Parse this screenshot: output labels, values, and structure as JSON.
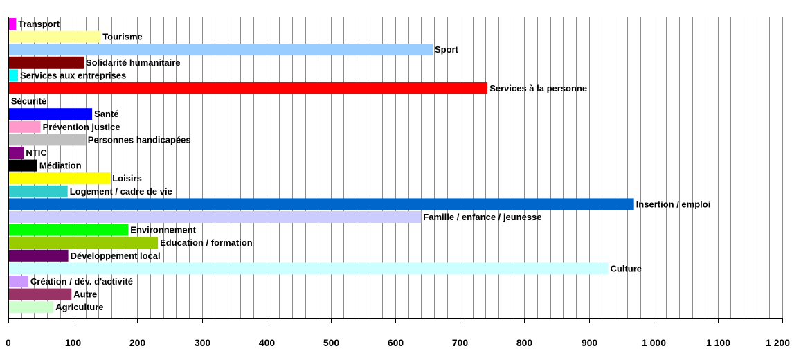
{
  "chart_data": {
    "type": "bar",
    "orientation": "horizontal",
    "title": "",
    "xlabel": "",
    "ylabel": "",
    "xlim": [
      0,
      1200
    ],
    "grid": "vertical",
    "major_ticks": [
      0,
      100,
      200,
      300,
      400,
      500,
      600,
      700,
      800,
      900,
      1000,
      1100,
      1200
    ],
    "tick_labels": [
      "0",
      "100",
      "200",
      "300",
      "400",
      "500",
      "600",
      "700",
      "800",
      "900",
      "1 000",
      "1 100",
      "1 200"
    ],
    "categories": [
      "Transport",
      "Tourisme",
      "Sport",
      "Solidarité humanitaire",
      "Services aux entreprises",
      "Services à la personne",
      "Sécurité",
      "Santé",
      "Prévention justice",
      "Personnes handicapées",
      "NTIC",
      "Médiation",
      "Loisirs",
      "Logement / cadre de vie",
      "Insertion / emploi",
      "Famille / enfance / jeunesse",
      "Environnement",
      "Education / formation",
      "Développement local",
      "Culture",
      "Création / dév. d'activité",
      "Autre",
      "Agriculture"
    ],
    "values": [
      12,
      143,
      658,
      117,
      15,
      743,
      1,
      130,
      50,
      120,
      24,
      45,
      158,
      92,
      970,
      640,
      186,
      232,
      93,
      930,
      31,
      98,
      70
    ],
    "colors": [
      "#FF00FF",
      "#FFFF99",
      "#99CCFF",
      "#800000",
      "#00FFFF",
      "#FF0000",
      "#000080",
      "#0000FF",
      "#FF99CC",
      "#C0C0C0",
      "#800080",
      "#000000",
      "#FFFF00",
      "#33CCCC",
      "#0066CC",
      "#CCCCFF",
      "#00FF00",
      "#99CC00",
      "#660066",
      "#CCFFFF",
      "#CC99FF",
      "#993366",
      "#CCFFCC"
    ]
  }
}
